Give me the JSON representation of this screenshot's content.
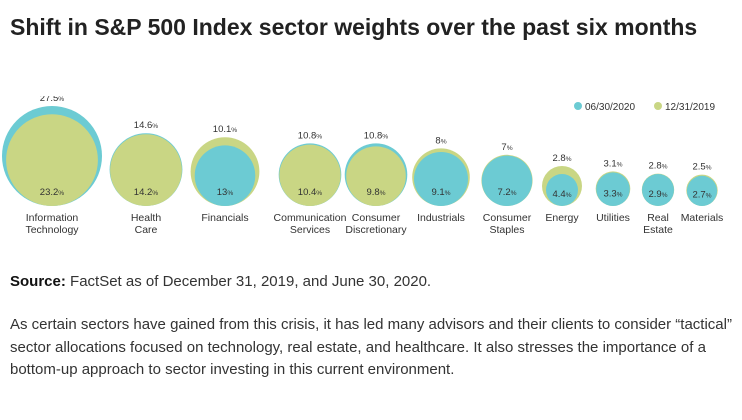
{
  "page": {
    "title": "Shift in S&P 500 Index sector weights over the past six months",
    "source_label": "Source:",
    "source_text": "FactSet as of December 31, 2019, and June 30, 2020.",
    "paragraph": "As certain sectors have gained from this crisis, it has led many advisors and their clients to consider “tactical” sector allocations focused on technology, real estate, and healthcare. It also stresses the importance of a bottom-up approach to sector investing in this current environment."
  },
  "chart_data": {
    "type": "bubble",
    "title": "",
    "legend_position": "top-right",
    "colors": {
      "06/30/2020": "#6ccbd3",
      "12/31/2019": "#c9d684"
    },
    "series": [
      {
        "name": "06/30/2020",
        "color": "#6ccbd3"
      },
      {
        "name": "12/31/2019",
        "color": "#c9d684"
      }
    ],
    "categories": [
      {
        "label": [
          "Information",
          "Technology"
        ],
        "jun_2020": 27.5,
        "jun_label": "27.5%",
        "dec_2019": 23.2,
        "dec_label": "23.2%"
      },
      {
        "label": [
          "Health",
          "Care"
        ],
        "jun_2020": 14.6,
        "jun_label": "14.6%",
        "dec_2019": 14.2,
        "dec_label": "14.2%"
      },
      {
        "label": [
          "Financials"
        ],
        "jun_2020": 10.1,
        "jun_label": "10.1%",
        "dec_2019": 13,
        "dec_label": "13%"
      },
      {
        "label": [
          "Communication",
          "Services"
        ],
        "jun_2020": 10.8,
        "jun_label": "10.8%",
        "dec_2019": 10.4,
        "dec_label": "10.4%"
      },
      {
        "label": [
          "Consumer",
          "Discretionary"
        ],
        "jun_2020": 10.8,
        "jun_label": "10.8%",
        "dec_2019": 9.8,
        "dec_label": "9.8%"
      },
      {
        "label": [
          "Industrials"
        ],
        "jun_2020": 8,
        "jun_label": "8%",
        "dec_2019": 9.1,
        "dec_label": "9.1%"
      },
      {
        "label": [
          "Consumer",
          "Staples"
        ],
        "jun_2020": 7,
        "jun_label": "7%",
        "dec_2019": 7.2,
        "dec_label": "7.2%"
      },
      {
        "label": [
          "Energy"
        ],
        "jun_2020": 2.8,
        "jun_label": "2.8%",
        "dec_2019": 4.4,
        "dec_label": "4.4%"
      },
      {
        "label": [
          "Utilities"
        ],
        "jun_2020": 3.1,
        "jun_label": "3.1%",
        "dec_2019": 3.3,
        "dec_label": "3.3%"
      },
      {
        "label": [
          "Real",
          "Estate"
        ],
        "jun_2020": 2.8,
        "jun_label": "2.8%",
        "dec_2019": 2.9,
        "dec_label": "2.9%"
      },
      {
        "label": [
          "Materials"
        ],
        "jun_2020": 2.5,
        "jun_label": "2.5%",
        "dec_2019": 2.7,
        "dec_label": "2.7%"
      }
    ]
  }
}
